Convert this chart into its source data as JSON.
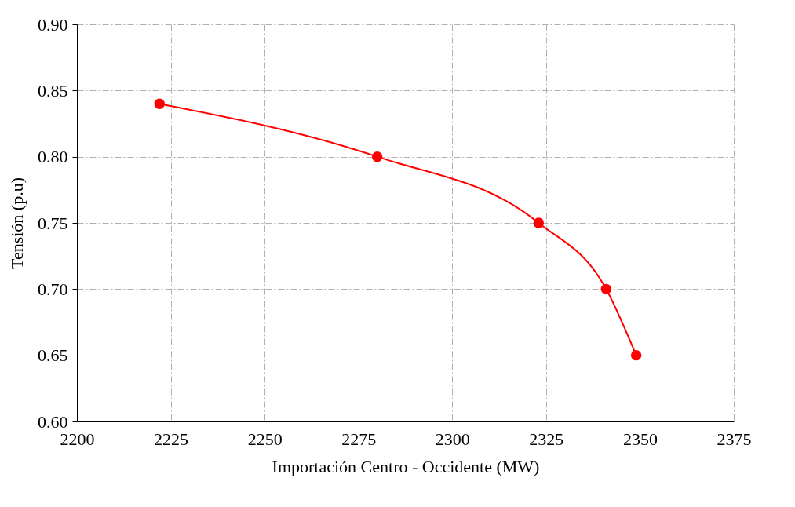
{
  "chart_data": {
    "type": "line",
    "xlabel": "Importación Centro - Occidente (MW)",
    "ylabel": "Tensión (p.u)",
    "x": [
      2222,
      2280,
      2323,
      2341,
      2349
    ],
    "series": [
      {
        "color": "#ff0000",
        "values": [
          0.84,
          0.8,
          0.75,
          0.7,
          0.65
        ]
      }
    ],
    "xlim": [
      2200,
      2375
    ],
    "xticks": [
      2200,
      2225,
      2250,
      2275,
      2300,
      2325,
      2350,
      2375
    ],
    "ylim": [
      0.6,
      0.9
    ],
    "yticks": [
      {
        "value": 0.6,
        "label": "0.60"
      },
      {
        "value": 0.65,
        "label": "0.65"
      },
      {
        "value": 0.7,
        "label": "0.70"
      },
      {
        "value": 0.75,
        "label": "0.75"
      },
      {
        "value": 0.8,
        "label": "0.80"
      },
      {
        "value": 0.85,
        "label": "0.85"
      },
      {
        "value": 0.9,
        "label": "0.90"
      }
    ],
    "grid": true,
    "marker": "circle",
    "line_style": "solid"
  }
}
